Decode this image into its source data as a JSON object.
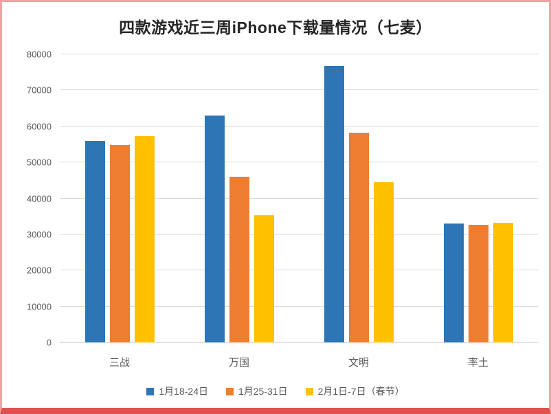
{
  "chart_data": {
    "type": "bar",
    "title": "四款游戏近三周iPhone下载量情况（七麦）",
    "categories": [
      "三战",
      "万国",
      "文明",
      "率土"
    ],
    "series": [
      {
        "name": "1月18-24日",
        "color": "#2E75B6",
        "values": [
          56000,
          63000,
          76800,
          33000
        ]
      },
      {
        "name": "1月25-31日",
        "color": "#ED7D31",
        "values": [
          54800,
          46000,
          58300,
          32700
        ]
      },
      {
        "name": "2月1日-7日（春节）",
        "color": "#FFC000",
        "values": [
          57300,
          35400,
          44500,
          33200
        ]
      }
    ],
    "xlabel": "",
    "ylabel": "",
    "ylim": [
      0,
      80000
    ],
    "ytick_step": 10000,
    "grid": true,
    "legend_position": "bottom"
  }
}
